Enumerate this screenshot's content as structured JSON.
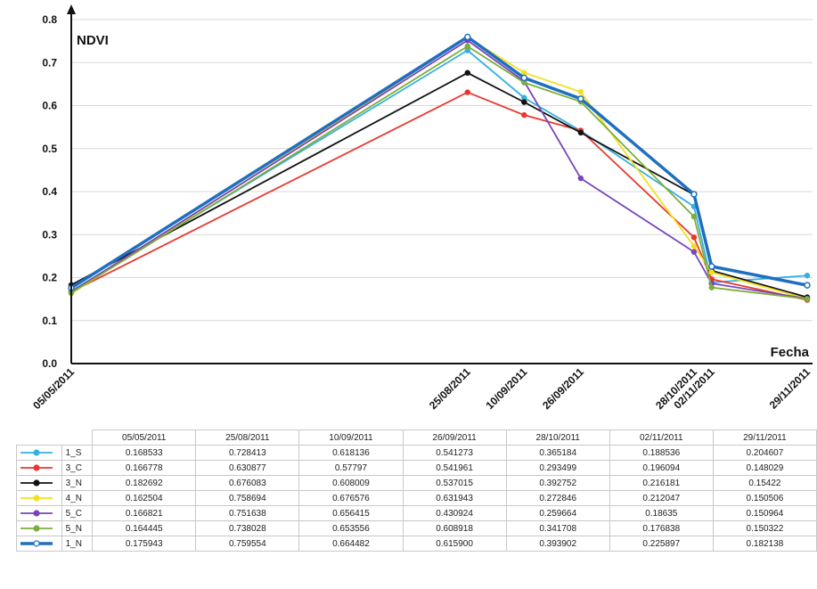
{
  "chart_data": {
    "type": "line",
    "ylabel": "NDVI",
    "xlabel": "Fecha",
    "ylim": [
      0,
      0.8
    ],
    "yticks": [
      "0.0",
      "0.1",
      "0.2",
      "0.3",
      "0.4",
      "0.5",
      "0.6",
      "0.7",
      "0.8"
    ],
    "x": [
      "05/05/2011",
      "25/08/2011",
      "10/09/2011",
      "26/09/2011",
      "28/10/2011",
      "02/11/2011",
      "29/11/2011"
    ],
    "grid": true,
    "series": [
      {
        "name": "1_S",
        "color": "#35b0e0",
        "values": [
          0.168533,
          0.728413,
          0.618136,
          0.541273,
          0.365184,
          0.188536,
          0.204607
        ],
        "labels": [
          "0.168533",
          "0.728413",
          "0.618136",
          "0.541273",
          "0.365184",
          "0.188536",
          "0.204607"
        ]
      },
      {
        "name": "3_C",
        "color": "#e8382e",
        "values": [
          0.166778,
          0.630877,
          0.57797,
          0.541961,
          0.293499,
          0.196094,
          0.148029
        ],
        "labels": [
          "0.166778",
          "0.630877",
          "0.57797",
          "0.541961",
          "0.293499",
          "0.196094",
          "0.148029"
        ]
      },
      {
        "name": "3_N",
        "color": "#111111",
        "values": [
          0.182692,
          0.676083,
          0.608009,
          0.537015,
          0.392752,
          0.216181,
          0.15422
        ],
        "labels": [
          "0.182692",
          "0.676083",
          "0.608009",
          "0.537015",
          "0.392752",
          "0.216181",
          "0.15422"
        ]
      },
      {
        "name": "4_N",
        "color": "#f2e020",
        "values": [
          0.162504,
          0.758694,
          0.676576,
          0.631943,
          0.272846,
          0.212047,
          0.150506
        ],
        "labels": [
          "0.162504",
          "0.758694",
          "0.676576",
          "0.631943",
          "0.272846",
          "0.212047",
          "0.150506"
        ]
      },
      {
        "name": "5_C",
        "color": "#7a45b8",
        "values": [
          0.166821,
          0.751638,
          0.656415,
          0.430924,
          0.259664,
          0.18635,
          0.150964
        ],
        "labels": [
          "0.166821",
          "0.751638",
          "0.656415",
          "0.430924",
          "0.259664",
          "0.18635",
          "0.150964"
        ]
      },
      {
        "name": "5_N",
        "color": "#7dad3c",
        "values": [
          0.164445,
          0.738028,
          0.653556,
          0.608918,
          0.341708,
          0.176838,
          0.150322
        ],
        "labels": [
          "0.164445",
          "0.738028",
          "0.653556",
          "0.608918",
          "0.341708",
          "0.176838",
          "0.150322"
        ]
      },
      {
        "name": "1_N",
        "color": "#1f6fc0",
        "values": [
          0.175943,
          0.759554,
          0.664482,
          0.6159,
          0.393902,
          0.225897,
          0.182138
        ],
        "labels": [
          "0.175943",
          "0.759554",
          "0.664482",
          "0.615900",
          "0.393902",
          "0.225897",
          "0.182138"
        ]
      }
    ]
  }
}
